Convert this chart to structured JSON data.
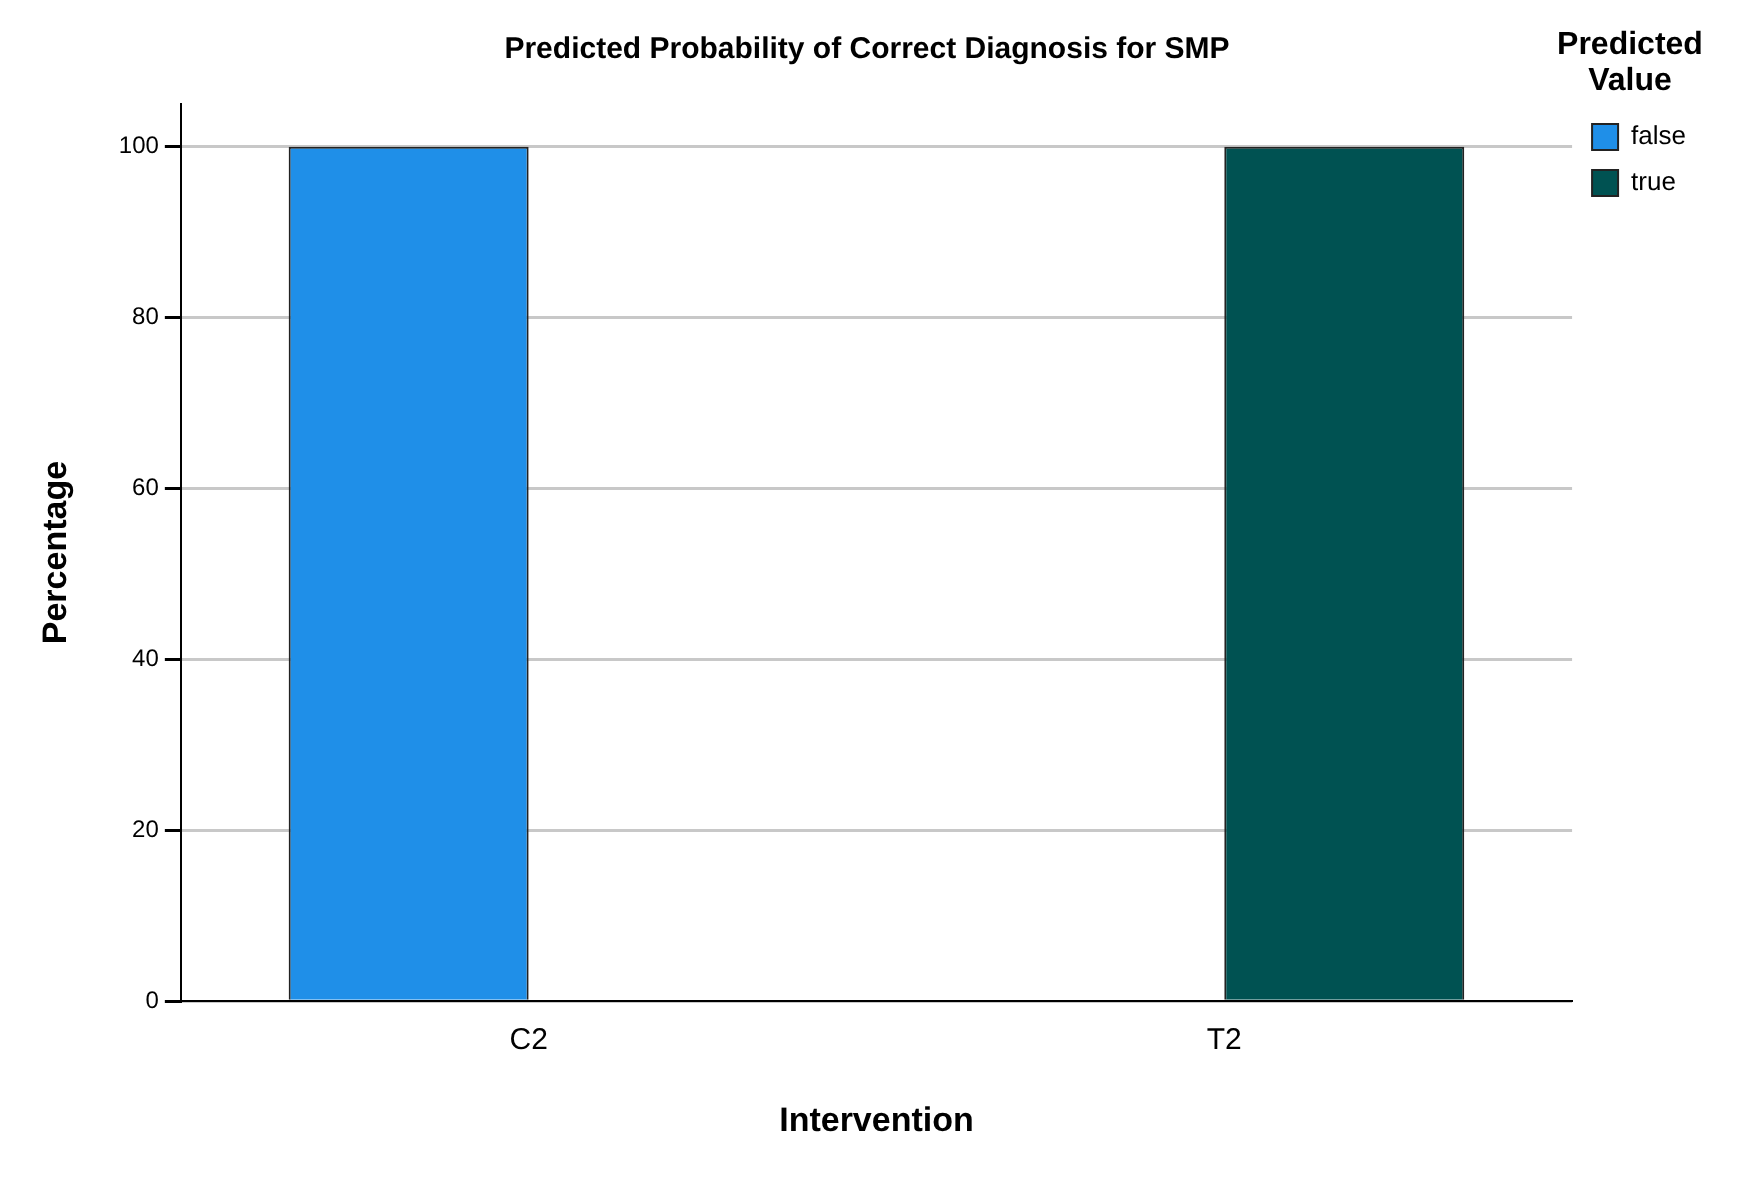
{
  "chart_data": {
    "type": "bar",
    "title": "Predicted Probability of Correct Diagnosis for SMP",
    "xlabel": "Intervention",
    "ylabel": "Percentage",
    "legend_title": "Predicted Value",
    "categories": [
      "C2",
      "T2"
    ],
    "series": [
      {
        "name": "false",
        "color": "#1f8fe8",
        "values": [
          100,
          null
        ]
      },
      {
        "name": "true",
        "color": "#005252",
        "values": [
          null,
          100
        ]
      }
    ],
    "ylim": [
      0,
      105
    ],
    "yticks": [
      0,
      20,
      40,
      60,
      80,
      100
    ],
    "grid": "y",
    "legend": "top right"
  }
}
